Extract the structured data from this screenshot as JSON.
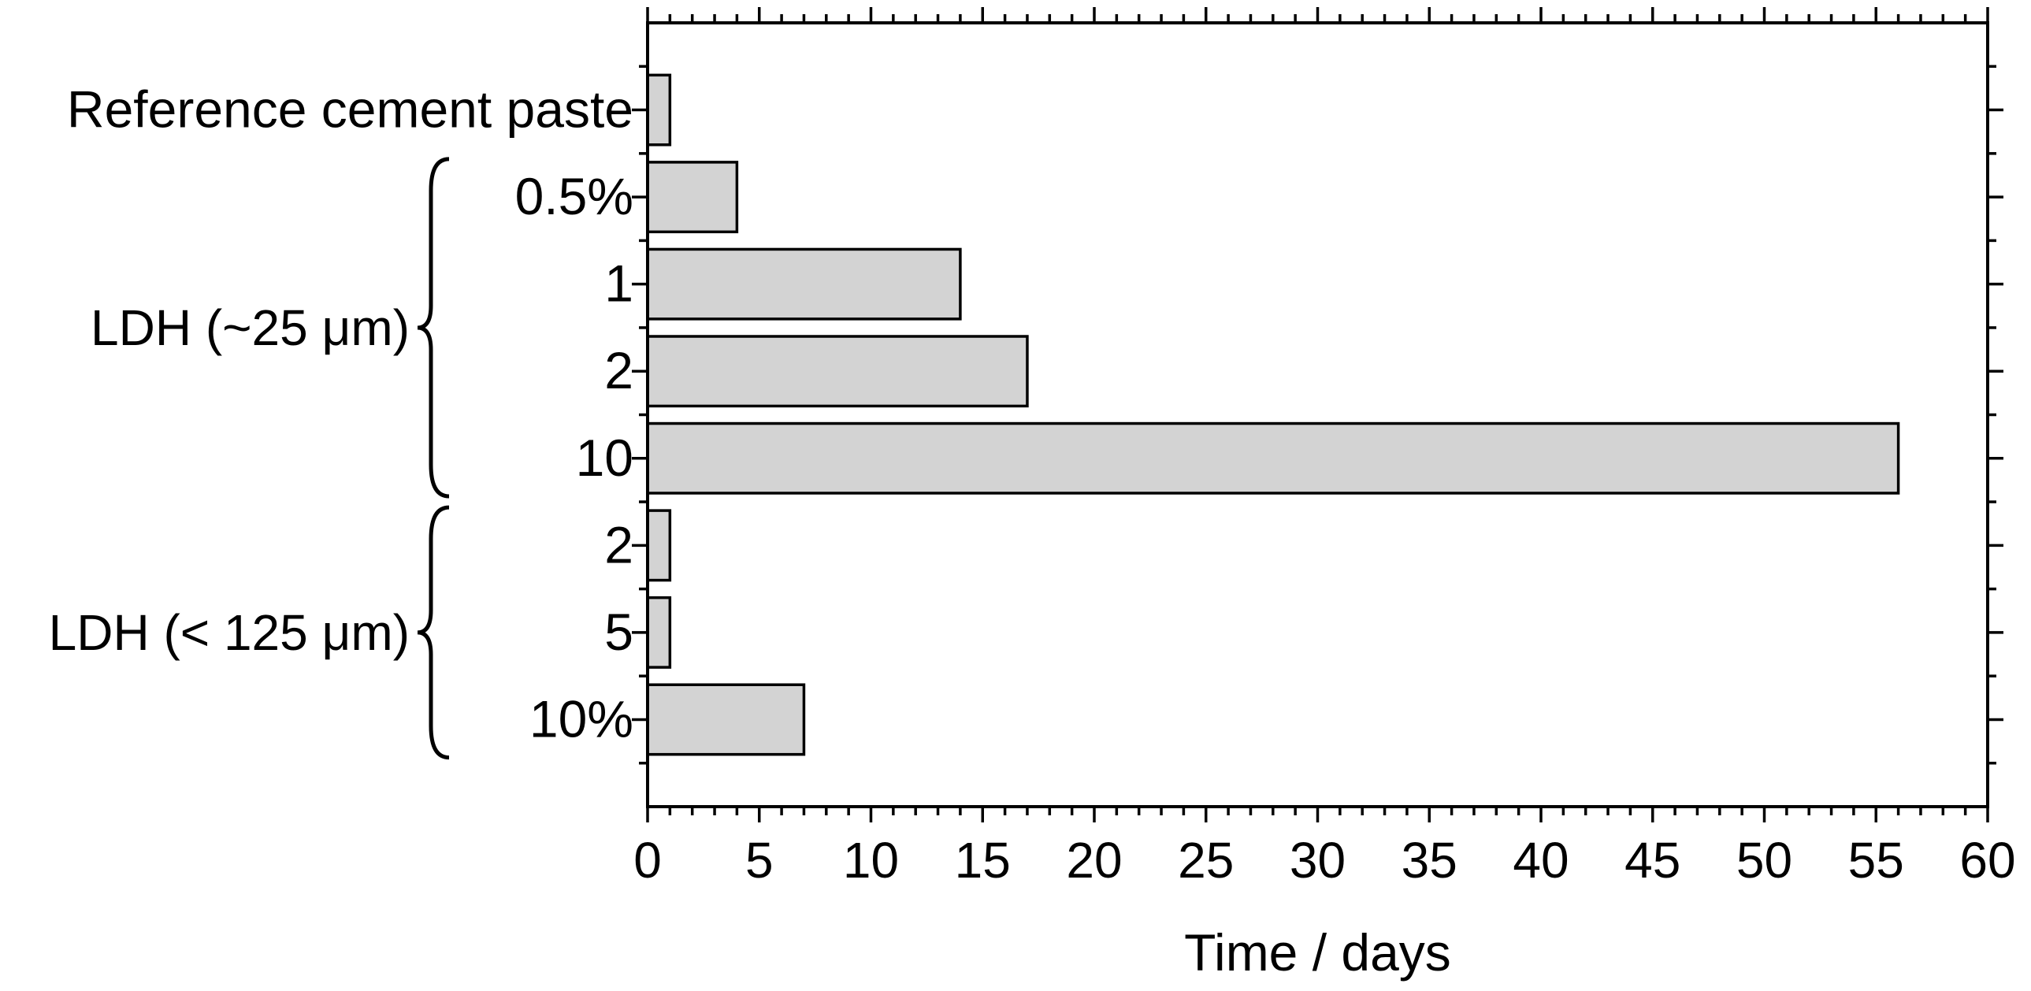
{
  "chart_data": {
    "type": "bar",
    "orientation": "horizontal",
    "categories": [
      {
        "label": "Reference cement paste",
        "value": 1,
        "group": null
      },
      {
        "label": "0.5%",
        "value": 4,
        "group": 0
      },
      {
        "label": "1",
        "value": 14,
        "group": 0
      },
      {
        "label": "2",
        "value": 17,
        "group": 0
      },
      {
        "label": "10",
        "value": 56,
        "group": 0
      },
      {
        "label": "2",
        "value": 1,
        "group": 1
      },
      {
        "label": "5",
        "value": 1,
        "group": 1
      },
      {
        "label": "10%",
        "value": 7,
        "group": 1
      }
    ],
    "groups": [
      {
        "label": "LDH (~25 μm)"
      },
      {
        "label": "LDH (< 125 μm)"
      }
    ],
    "xlabel": "Time / days",
    "ylabel": "",
    "title": "",
    "xlim": [
      0,
      60
    ],
    "xticks": [
      0,
      5,
      10,
      15,
      20,
      25,
      30,
      35,
      40,
      45,
      50,
      55,
      60
    ],
    "grid": false,
    "bar_color": "#d3d3d3",
    "bar_edge_color": "#000000"
  }
}
